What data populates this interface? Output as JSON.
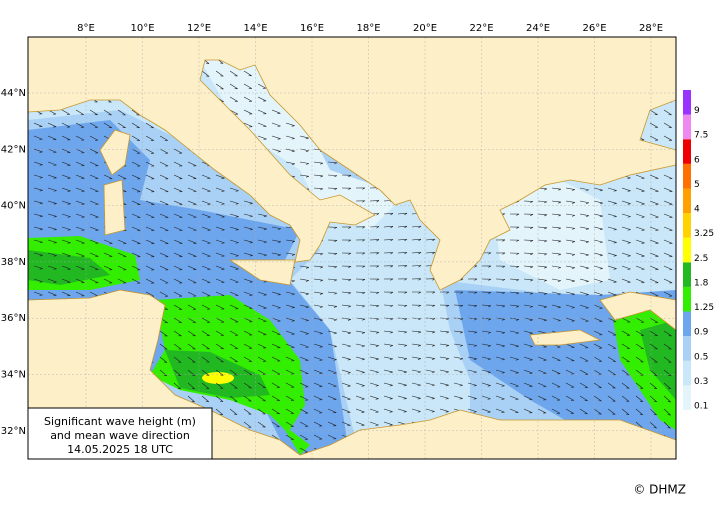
{
  "map": {
    "lon_labels": [
      "8°E",
      "10°E",
      "12°E",
      "14°E",
      "16°E",
      "18°E",
      "20°E",
      "22°E",
      "24°E",
      "26°E",
      "28°E"
    ],
    "lat_labels": [
      "44°N",
      "42°N",
      "40°N",
      "38°N",
      "36°N",
      "34°N",
      "32°N"
    ]
  },
  "legend": {
    "levels": [
      0.1,
      0.3,
      0.5,
      0.9,
      1.25,
      1.8,
      2.5,
      3.25,
      4,
      5,
      6,
      7.5,
      9
    ],
    "colors": [
      "#e4f4fb",
      "#c9e7f8",
      "#a9d1f5",
      "#6ea6ee",
      "#33ee00",
      "#22b822",
      "#ffff00",
      "#ffd200",
      "#ffa000",
      "#ff7000",
      "#ee0000",
      "#ee88ee",
      "#9933ff"
    ]
  },
  "caption": [
    "Significant wave height (m)",
    "and mean wave direction",
    "14.05.2025 18  UTC"
  ],
  "credit": "© DHMZ"
}
